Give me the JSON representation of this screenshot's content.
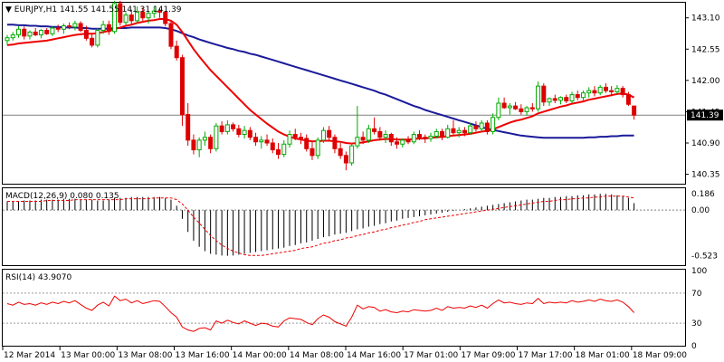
{
  "header": {
    "symbol_label": "EURJPY,H1",
    "ohlc_text": "141.55 141.55 141.31 141.39"
  },
  "main_panel": {
    "price_ticks": [
      "143.10",
      "142.55",
      "142.00",
      "141.45",
      "140.90",
      "140.35"
    ],
    "current_price_label": "141.39",
    "colors": {
      "bull_candle": "#00aa00",
      "bear_candle": "#dd0000",
      "fast_ma": "#ee0000",
      "slow_ma": "#1a1a9a",
      "price_line": "#808080"
    }
  },
  "macd_panel": {
    "title": "MACD(12,26,9) 0.080 0.135",
    "ticks": [
      "0.186",
      "0.00",
      "-0.523"
    ]
  },
  "rsi_panel": {
    "title": "RSI(14) 43.9070",
    "ticks": [
      "100",
      "70",
      "30",
      "0"
    ]
  },
  "time_axis": {
    "labels": [
      "12 Mar 2014",
      "13 Mar 00:00",
      "13 Mar 08:00",
      "13 Mar 16:00",
      "14 Mar 00:00",
      "14 Mar 08:00",
      "14 Mar 16:00",
      "17 Mar 01:00",
      "17 Mar 09:00",
      "17 Mar 17:00",
      "18 Mar 01:00",
      "18 Mar 09:00"
    ]
  },
  "chart_data": {
    "type": "candlestick",
    "symbol": "EURJPY",
    "timeframe": "H1",
    "last_price": 141.39,
    "price_ylim": [
      140.2,
      143.35
    ],
    "candles": [
      [
        142.7,
        142.8,
        142.62,
        142.75
      ],
      [
        142.75,
        142.85,
        142.7,
        142.8
      ],
      [
        142.8,
        142.95,
        142.75,
        142.9
      ],
      [
        142.9,
        142.95,
        142.72,
        142.78
      ],
      [
        142.78,
        142.88,
        142.72,
        142.85
      ],
      [
        142.85,
        142.92,
        142.78,
        142.8
      ],
      [
        142.8,
        142.9,
        142.74,
        142.88
      ],
      [
        142.88,
        142.92,
        142.8,
        142.82
      ],
      [
        142.82,
        142.95,
        142.78,
        142.92
      ],
      [
        142.92,
        142.98,
        142.85,
        142.9
      ],
      [
        142.9,
        143.0,
        142.82,
        142.96
      ],
      [
        142.96,
        143.02,
        142.9,
        142.94
      ],
      [
        142.94,
        143.05,
        142.88,
        143.0
      ],
      [
        143.0,
        143.04,
        142.85,
        142.88
      ],
      [
        142.88,
        142.96,
        142.7,
        142.74
      ],
      [
        142.74,
        142.82,
        142.58,
        142.62
      ],
      [
        142.62,
        142.92,
        142.58,
        142.88
      ],
      [
        142.88,
        143.05,
        142.82,
        142.98
      ],
      [
        142.98,
        143.05,
        142.8,
        142.86
      ],
      [
        142.86,
        143.4,
        142.82,
        143.35
      ],
      [
        143.35,
        143.4,
        142.96,
        143.02
      ],
      [
        143.02,
        143.2,
        142.98,
        143.15
      ],
      [
        143.15,
        143.24,
        142.98,
        143.05
      ],
      [
        143.05,
        143.3,
        143.0,
        143.2
      ],
      [
        143.2,
        143.28,
        143.05,
        143.1
      ],
      [
        143.1,
        143.22,
        143.0,
        143.18
      ],
      [
        143.18,
        143.3,
        143.1,
        143.22
      ],
      [
        143.22,
        143.28,
        143.1,
        143.2
      ],
      [
        143.2,
        143.22,
        142.95,
        143.0
      ],
      [
        143.0,
        143.05,
        142.55,
        142.6
      ],
      [
        142.6,
        142.7,
        142.35,
        142.4
      ],
      [
        142.4,
        142.45,
        141.2,
        141.4
      ],
      [
        141.4,
        141.6,
        140.85,
        140.95
      ],
      [
        140.95,
        141.05,
        140.7,
        140.78
      ],
      [
        140.78,
        141.0,
        140.65,
        140.95
      ],
      [
        140.95,
        141.1,
        140.85,
        141.0
      ],
      [
        141.0,
        141.05,
        140.72,
        140.8
      ],
      [
        140.8,
        141.25,
        140.75,
        141.2
      ],
      [
        141.2,
        141.28,
        141.05,
        141.1
      ],
      [
        141.1,
        141.3,
        141.05,
        141.22
      ],
      [
        141.22,
        141.26,
        141.1,
        141.15
      ],
      [
        141.15,
        141.22,
        141.0,
        141.05
      ],
      [
        141.05,
        141.2,
        140.98,
        141.12
      ],
      [
        141.12,
        141.18,
        140.95,
        141.0
      ],
      [
        141.0,
        141.08,
        140.85,
        140.92
      ],
      [
        140.92,
        141.02,
        140.8,
        140.95
      ],
      [
        140.95,
        141.05,
        140.85,
        140.9
      ],
      [
        140.9,
        140.98,
        140.72,
        140.78
      ],
      [
        140.78,
        140.9,
        140.62,
        140.7
      ],
      [
        140.7,
        140.95,
        140.65,
        140.88
      ],
      [
        140.88,
        141.12,
        140.82,
        141.05
      ],
      [
        141.05,
        141.15,
        140.95,
        141.0
      ],
      [
        141.0,
        141.08,
        140.88,
        140.98
      ],
      [
        140.98,
        141.05,
        140.75,
        140.8
      ],
      [
        140.8,
        140.92,
        140.6,
        140.68
      ],
      [
        140.68,
        141.0,
        140.62,
        140.95
      ],
      [
        140.95,
        141.18,
        140.9,
        141.12
      ],
      [
        141.12,
        141.2,
        140.95,
        141.0
      ],
      [
        141.0,
        141.05,
        140.72,
        140.8
      ],
      [
        140.8,
        140.9,
        140.62,
        140.68
      ],
      [
        140.68,
        140.75,
        140.42,
        140.55
      ],
      [
        140.55,
        140.9,
        140.5,
        140.85
      ],
      [
        140.85,
        141.55,
        140.8,
        141.0
      ],
      [
        141.0,
        141.1,
        140.88,
        140.95
      ],
      [
        140.95,
        141.22,
        140.9,
        141.15
      ],
      [
        141.15,
        141.35,
        141.05,
        141.1
      ],
      [
        141.1,
        141.18,
        140.95,
        141.0
      ],
      [
        141.0,
        141.12,
        140.9,
        141.05
      ],
      [
        141.05,
        141.08,
        140.85,
        140.92
      ],
      [
        140.92,
        141.0,
        140.8,
        140.88
      ],
      [
        140.88,
        140.98,
        140.82,
        140.95
      ],
      [
        140.95,
        141.02,
        140.88,
        140.92
      ],
      [
        140.92,
        141.1,
        140.88,
        141.05
      ],
      [
        141.05,
        141.12,
        140.95,
        141.0
      ],
      [
        141.0,
        141.05,
        140.9,
        140.98
      ],
      [
        140.98,
        141.08,
        140.92,
        141.02
      ],
      [
        141.02,
        141.15,
        140.98,
        141.1
      ],
      [
        141.1,
        141.15,
        140.95,
        141.0
      ],
      [
        141.0,
        141.22,
        140.98,
        141.15
      ],
      [
        141.15,
        141.3,
        141.05,
        141.08
      ],
      [
        141.08,
        141.18,
        141.0,
        141.12
      ],
      [
        141.12,
        141.18,
        141.02,
        141.08
      ],
      [
        141.08,
        141.25,
        141.05,
        141.2
      ],
      [
        141.2,
        141.28,
        141.1,
        141.15
      ],
      [
        141.15,
        141.3,
        141.1,
        141.25
      ],
      [
        141.25,
        141.3,
        141.05,
        141.1
      ],
      [
        141.1,
        141.42,
        141.05,
        141.35
      ],
      [
        141.35,
        141.7,
        141.3,
        141.6
      ],
      [
        141.6,
        141.7,
        141.5,
        141.52
      ],
      [
        141.52,
        141.6,
        141.4,
        141.55
      ],
      [
        141.55,
        141.62,
        141.48,
        141.5
      ],
      [
        141.5,
        141.58,
        141.4,
        141.45
      ],
      [
        141.45,
        141.55,
        141.38,
        141.52
      ],
      [
        141.52,
        141.6,
        141.45,
        141.5
      ],
      [
        141.5,
        141.98,
        141.45,
        141.9
      ],
      [
        141.9,
        141.95,
        141.55,
        141.62
      ],
      [
        141.62,
        141.7,
        141.55,
        141.68
      ],
      [
        141.68,
        141.75,
        141.6,
        141.65
      ],
      [
        141.65,
        141.72,
        141.58,
        141.7
      ],
      [
        141.7,
        141.75,
        141.6,
        141.64
      ],
      [
        141.64,
        141.8,
        141.6,
        141.75
      ],
      [
        141.75,
        141.82,
        141.65,
        141.7
      ],
      [
        141.7,
        141.82,
        141.65,
        141.78
      ],
      [
        141.78,
        141.88,
        141.7,
        141.82
      ],
      [
        141.82,
        141.9,
        141.72,
        141.78
      ],
      [
        141.78,
        141.92,
        141.74,
        141.88
      ],
      [
        141.88,
        141.95,
        141.78,
        141.82
      ],
      [
        141.82,
        141.9,
        141.72,
        141.8
      ],
      [
        141.8,
        141.92,
        141.76,
        141.86
      ],
      [
        141.86,
        141.9,
        141.7,
        141.75
      ],
      [
        141.75,
        141.8,
        141.55,
        141.58
      ],
      [
        141.55,
        141.55,
        141.31,
        141.39
      ]
    ],
    "fast_ma": [
      142.62,
      142.63,
      142.65,
      142.66,
      142.67,
      142.68,
      142.69,
      142.7,
      142.72,
      142.74,
      142.76,
      142.78,
      142.8,
      142.81,
      142.82,
      142.82,
      142.83,
      142.85,
      142.87,
      142.9,
      142.93,
      142.96,
      142.98,
      143.01,
      143.03,
      143.05,
      143.06,
      143.08,
      143.08,
      143.05,
      142.98,
      142.85,
      142.7,
      142.55,
      142.42,
      142.3,
      142.18,
      142.08,
      141.98,
      141.88,
      141.78,
      141.68,
      141.58,
      141.48,
      141.4,
      141.32,
      141.24,
      141.17,
      141.1,
      141.05,
      141.01,
      140.98,
      140.96,
      140.94,
      140.93,
      140.93,
      140.94,
      140.94,
      140.93,
      140.92,
      140.9,
      140.89,
      140.9,
      140.91,
      140.93,
      140.95,
      140.96,
      140.97,
      140.97,
      140.96,
      140.96,
      140.96,
      140.97,
      140.98,
      140.98,
      140.99,
      141.0,
      141.01,
      141.02,
      141.03,
      141.04,
      141.05,
      141.06,
      141.08,
      141.1,
      141.11,
      141.14,
      141.18,
      141.22,
      141.26,
      141.29,
      141.31,
      141.34,
      141.37,
      141.42,
      141.45,
      141.48,
      141.51,
      141.54,
      141.56,
      141.59,
      141.61,
      141.63,
      141.66,
      141.68,
      141.7,
      141.72,
      141.74,
      141.76,
      141.77,
      141.75,
      141.7
    ],
    "slow_ma": [
      142.98,
      142.98,
      142.97,
      142.97,
      142.96,
      142.96,
      142.95,
      142.95,
      142.94,
      142.94,
      142.93,
      142.93,
      142.93,
      142.92,
      142.92,
      142.91,
      142.91,
      142.91,
      142.91,
      142.92,
      142.92,
      142.92,
      142.93,
      142.93,
      142.93,
      142.93,
      142.93,
      142.93,
      142.92,
      142.9,
      142.87,
      142.83,
      142.79,
      142.76,
      142.72,
      142.69,
      142.66,
      142.63,
      142.6,
      142.57,
      142.55,
      142.52,
      142.5,
      142.47,
      142.45,
      142.42,
      142.39,
      142.36,
      142.33,
      142.3,
      142.27,
      142.24,
      142.21,
      142.18,
      142.15,
      142.12,
      142.09,
      142.06,
      142.03,
      142.0,
      141.97,
      141.94,
      141.91,
      141.88,
      141.85,
      141.82,
      141.78,
      141.75,
      141.71,
      141.67,
      141.63,
      141.59,
      141.55,
      141.52,
      141.48,
      141.45,
      141.42,
      141.39,
      141.36,
      141.33,
      141.3,
      141.27,
      141.24,
      141.21,
      141.18,
      141.15,
      141.13,
      141.11,
      141.09,
      141.07,
      141.05,
      141.03,
      141.02,
      141.01,
      141.0,
      140.99,
      140.99,
      140.99,
      140.99,
      140.99,
      140.99,
      140.99,
      140.99,
      141.0,
      141.0,
      141.01,
      141.01,
      141.02,
      141.02,
      141.03,
      141.03,
      141.03
    ],
    "macd": {
      "ylim": [
        -0.62,
        0.24
      ],
      "signal_value": 0.135,
      "histogram_value": 0.08,
      "histogram": [
        0.1,
        0.1,
        0.1,
        0.11,
        0.11,
        0.11,
        0.12,
        0.12,
        0.12,
        0.12,
        0.13,
        0.13,
        0.13,
        0.12,
        0.12,
        0.12,
        0.11,
        0.11,
        0.12,
        0.14,
        0.14,
        0.14,
        0.15,
        0.15,
        0.15,
        0.15,
        0.15,
        0.15,
        0.14,
        0.12,
        0.05,
        -0.1,
        -0.25,
        -0.35,
        -0.42,
        -0.47,
        -0.5,
        -0.51,
        -0.52,
        -0.523,
        -0.52,
        -0.51,
        -0.5,
        -0.49,
        -0.48,
        -0.47,
        -0.46,
        -0.45,
        -0.44,
        -0.43,
        -0.41,
        -0.4,
        -0.38,
        -0.37,
        -0.35,
        -0.33,
        -0.31,
        -0.3,
        -0.28,
        -0.27,
        -0.26,
        -0.24,
        -0.22,
        -0.21,
        -0.19,
        -0.18,
        -0.16,
        -0.15,
        -0.13,
        -0.12,
        -0.1,
        -0.09,
        -0.08,
        -0.07,
        -0.06,
        -0.05,
        -0.04,
        -0.03,
        -0.02,
        -0.01,
        0.0,
        0.01,
        0.02,
        0.03,
        0.04,
        0.05,
        0.06,
        0.07,
        0.08,
        0.09,
        0.1,
        0.11,
        0.12,
        0.12,
        0.13,
        0.14,
        0.14,
        0.15,
        0.15,
        0.16,
        0.16,
        0.17,
        0.17,
        0.18,
        0.18,
        0.186,
        0.185,
        0.18,
        0.17,
        0.16,
        0.14,
        0.08
      ],
      "signal": [
        0.1,
        0.1,
        0.1,
        0.1,
        0.1,
        0.1,
        0.1,
        0.11,
        0.11,
        0.11,
        0.11,
        0.11,
        0.12,
        0.12,
        0.12,
        0.12,
        0.12,
        0.12,
        0.12,
        0.12,
        0.12,
        0.13,
        0.13,
        0.13,
        0.13,
        0.13,
        0.14,
        0.14,
        0.14,
        0.14,
        0.12,
        0.07,
        0.0,
        -0.08,
        -0.15,
        -0.22,
        -0.29,
        -0.35,
        -0.4,
        -0.44,
        -0.47,
        -0.49,
        -0.51,
        -0.52,
        -0.52,
        -0.52,
        -0.51,
        -0.5,
        -0.49,
        -0.48,
        -0.47,
        -0.46,
        -0.44,
        -0.43,
        -0.42,
        -0.4,
        -0.38,
        -0.37,
        -0.35,
        -0.34,
        -0.32,
        -0.31,
        -0.29,
        -0.28,
        -0.26,
        -0.25,
        -0.23,
        -0.22,
        -0.2,
        -0.19,
        -0.17,
        -0.16,
        -0.14,
        -0.13,
        -0.11,
        -0.1,
        -0.09,
        -0.08,
        -0.07,
        -0.06,
        -0.05,
        -0.04,
        -0.03,
        -0.02,
        -0.01,
        0.0,
        0.01,
        0.02,
        0.03,
        0.04,
        0.05,
        0.06,
        0.07,
        0.08,
        0.09,
        0.1,
        0.1,
        0.11,
        0.12,
        0.12,
        0.13,
        0.13,
        0.14,
        0.14,
        0.15,
        0.15,
        0.16,
        0.16,
        0.16,
        0.16,
        0.15,
        0.14
      ]
    },
    "rsi": {
      "value": 43.907,
      "levels": [
        70,
        30
      ],
      "ylim": [
        0,
        100
      ],
      "values": [
        56,
        54,
        58,
        55,
        56,
        54,
        57,
        55,
        58,
        56,
        59,
        57,
        60,
        55,
        50,
        47,
        54,
        58,
        53,
        66,
        60,
        62,
        57,
        60,
        56,
        58,
        60,
        59,
        52,
        44,
        38,
        25,
        21,
        19,
        23,
        24,
        21,
        33,
        30,
        34,
        31,
        29,
        33,
        30,
        27,
        30,
        29,
        26,
        25,
        33,
        37,
        36,
        35,
        31,
        28,
        36,
        41,
        38,
        32,
        29,
        26,
        38,
        54,
        49,
        52,
        51,
        46,
        48,
        45,
        44,
        46,
        45,
        48,
        47,
        46,
        47,
        50,
        47,
        52,
        50,
        51,
        50,
        53,
        51,
        54,
        50,
        56,
        61,
        57,
        58,
        56,
        55,
        57,
        56,
        63,
        56,
        58,
        57,
        58,
        57,
        60,
        58,
        59,
        61,
        59,
        62,
        60,
        59,
        61,
        58,
        52,
        44
      ]
    }
  }
}
